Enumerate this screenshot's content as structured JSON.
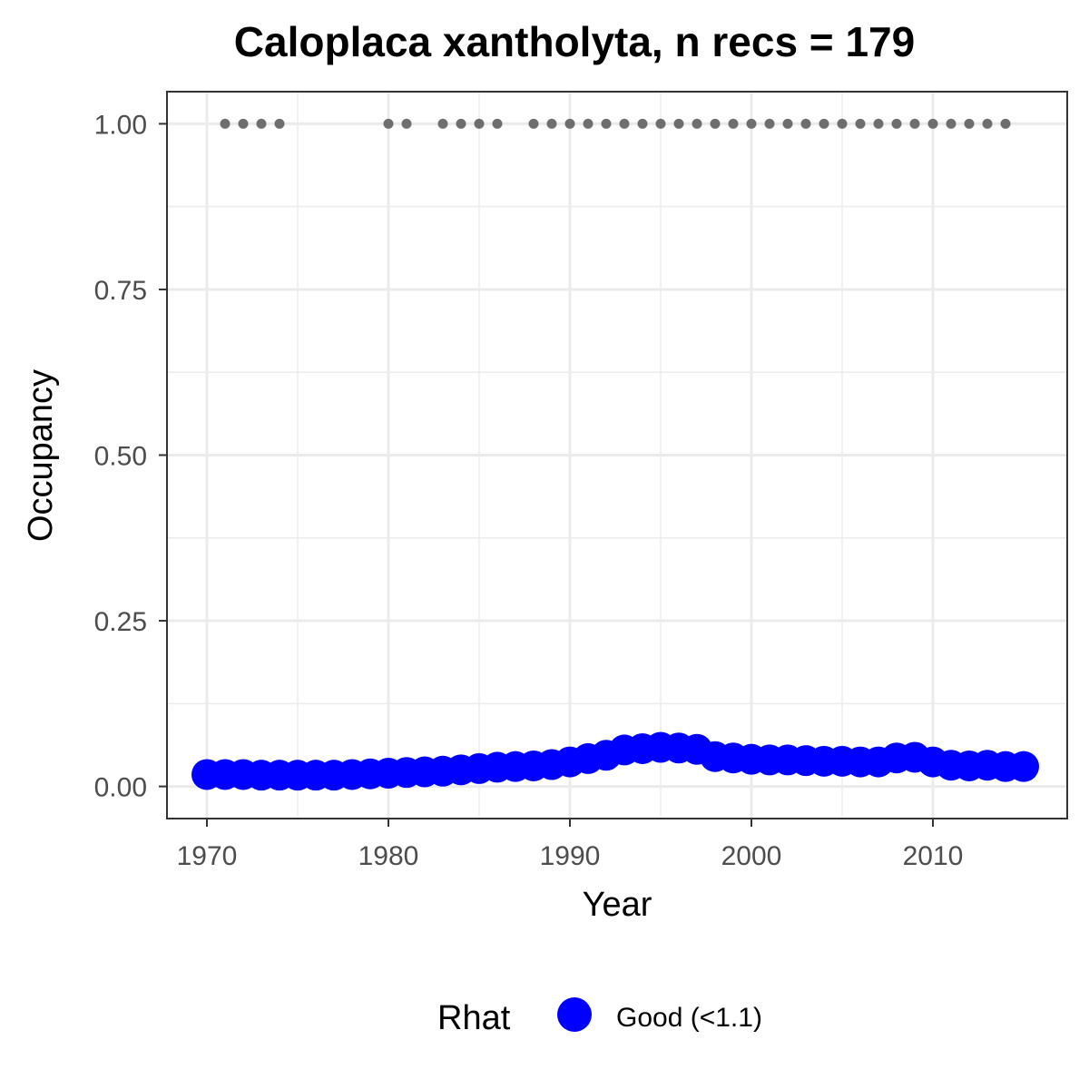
{
  "chart_data": {
    "type": "scatter",
    "title": "Caloplaca xantholyta, n recs = 179",
    "xlabel": "Year",
    "ylabel": "Occupancy",
    "xlim": [
      1967.8,
      2017.4
    ],
    "ylim": [
      -0.0485,
      1.0485
    ],
    "x_ticks": [
      1970,
      1980,
      1990,
      2000,
      2010
    ],
    "x_tick_labels": [
      "1970",
      "1980",
      "1990",
      "2000",
      "2010"
    ],
    "y_ticks": [
      0,
      0.25,
      0.5,
      0.75,
      1
    ],
    "y_tick_labels": [
      "0.00",
      "0.25",
      "0.50",
      "0.75",
      "1.00"
    ],
    "grid": true,
    "legend": {
      "title": "Rhat",
      "position": "bottom",
      "entries": [
        {
          "label": "Good (<1.1)",
          "color": "#0000ff"
        }
      ]
    },
    "colors": {
      "occupancy": "#0000ff",
      "records": "#6e6e6e",
      "grid": "#ebebeb",
      "panel_border": "#333333"
    },
    "series": [
      {
        "role": "occupancy",
        "x": [
          1970,
          1971,
          1972,
          1973,
          1974,
          1975,
          1976,
          1977,
          1978,
          1979,
          1980,
          1981,
          1982,
          1983,
          1984,
          1985,
          1986,
          1987,
          1988,
          1989,
          1990,
          1991,
          1992,
          1993,
          1994,
          1995,
          1996,
          1997,
          1998,
          1999,
          2000,
          2001,
          2002,
          2003,
          2004,
          2005,
          2006,
          2007,
          2008,
          2009,
          2010,
          2011,
          2012,
          2013,
          2014,
          2015
        ],
        "values": [
          0.018,
          0.018,
          0.018,
          0.017,
          0.017,
          0.017,
          0.017,
          0.017,
          0.018,
          0.019,
          0.02,
          0.021,
          0.022,
          0.023,
          0.025,
          0.027,
          0.029,
          0.03,
          0.031,
          0.033,
          0.037,
          0.042,
          0.047,
          0.055,
          0.057,
          0.059,
          0.058,
          0.056,
          0.045,
          0.043,
          0.041,
          0.04,
          0.04,
          0.039,
          0.038,
          0.038,
          0.037,
          0.037,
          0.043,
          0.044,
          0.037,
          0.032,
          0.031,
          0.032,
          0.03,
          0.03
        ]
      },
      {
        "role": "records",
        "x": [
          1971,
          1972,
          1973,
          1974,
          1980,
          1981,
          1983,
          1984,
          1985,
          1986,
          1988,
          1989,
          1990,
          1991,
          1992,
          1993,
          1994,
          1995,
          1996,
          1997,
          1998,
          1999,
          2000,
          2001,
          2002,
          2003,
          2004,
          2005,
          2006,
          2007,
          2008,
          2009,
          2010,
          2011,
          2012,
          2013,
          2014
        ],
        "values": [
          1,
          1,
          1,
          1,
          1,
          1,
          1,
          1,
          1,
          1,
          1,
          1,
          1,
          1,
          1,
          1,
          1,
          1,
          1,
          1,
          1,
          1,
          1,
          1,
          1,
          1,
          1,
          1,
          1,
          1,
          1,
          1,
          1,
          1,
          1,
          1,
          1
        ]
      }
    ]
  }
}
